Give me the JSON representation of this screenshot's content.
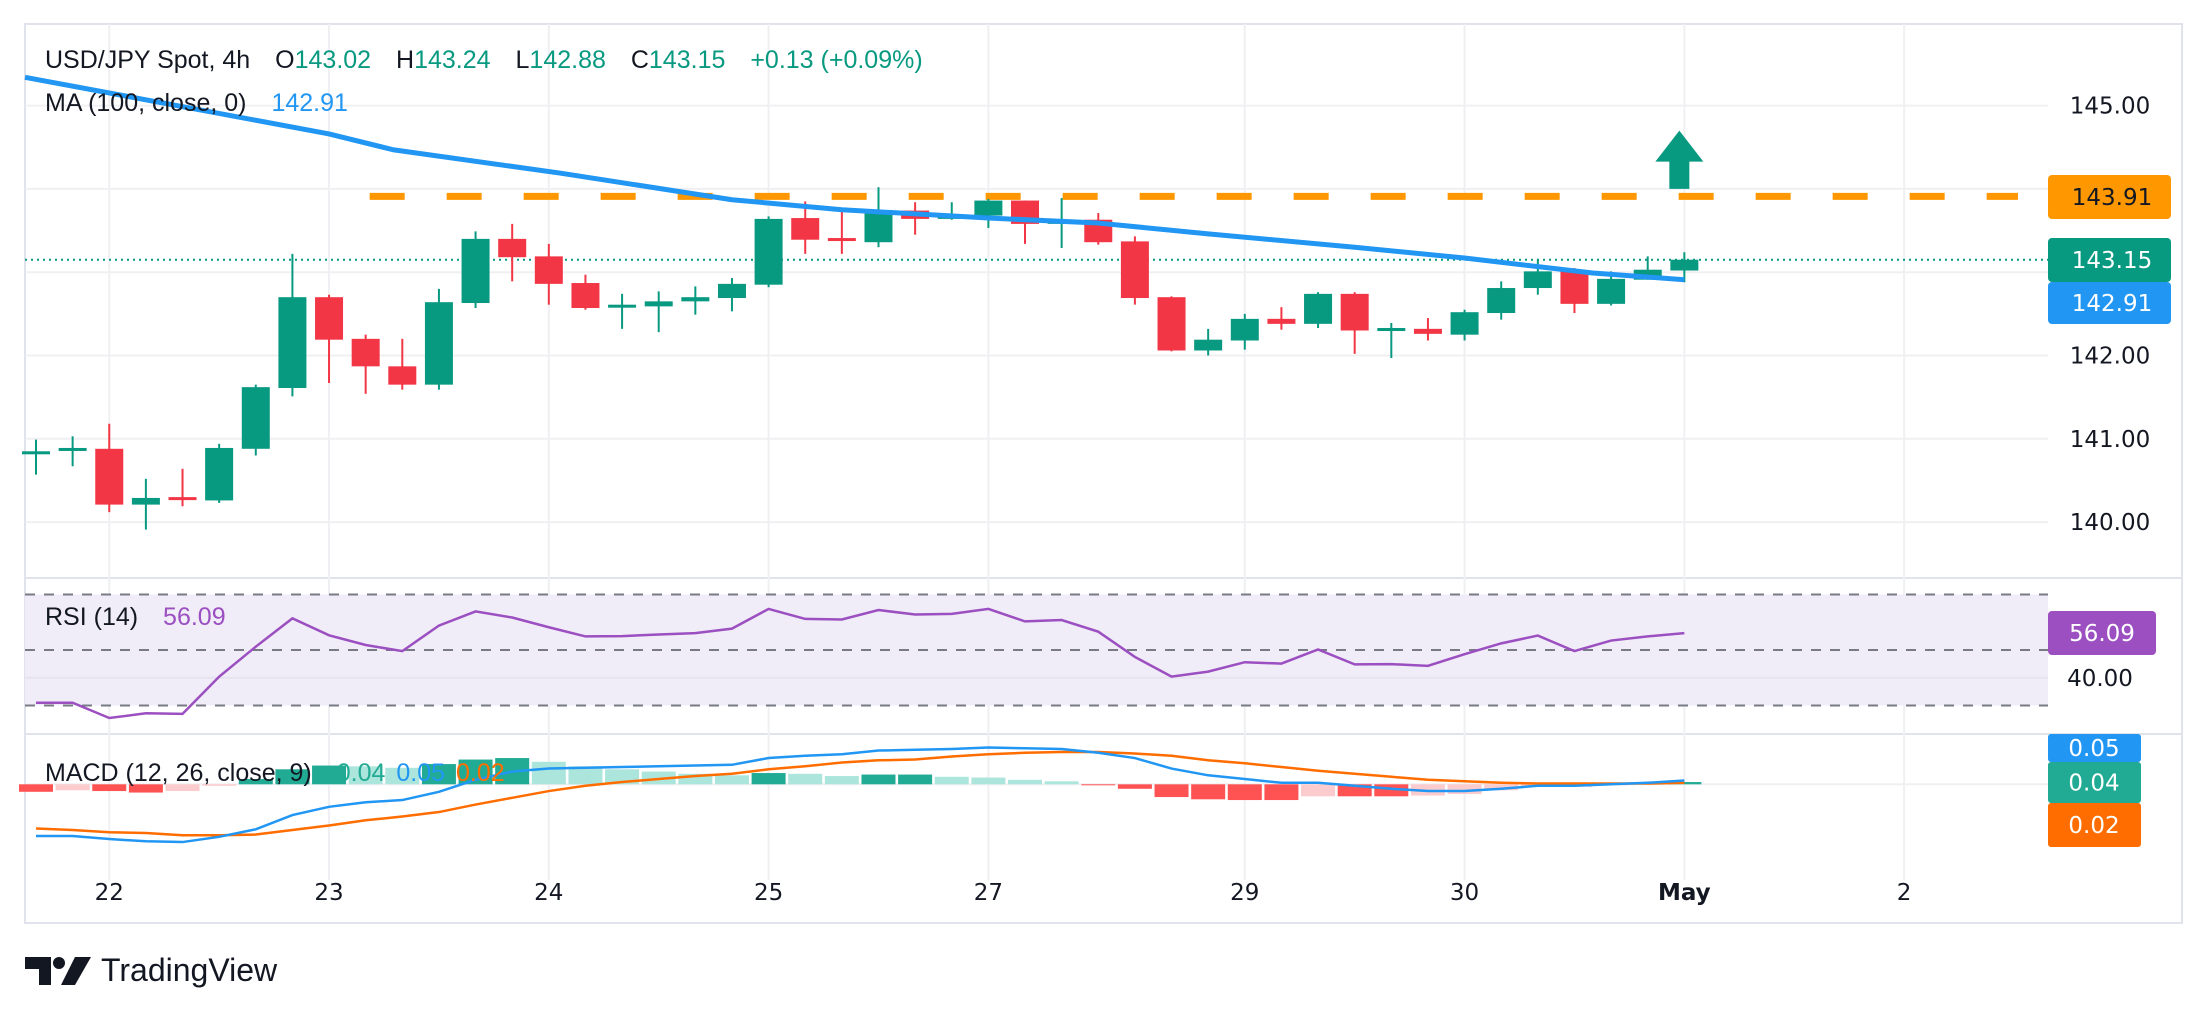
{
  "header": {
    "symbol": "USD/JPY Spot, 4h",
    "o_label": "O",
    "o": "143.02",
    "h_label": "H",
    "h": "143.24",
    "l_label": "L",
    "l": "142.88",
    "c_label": "C",
    "c": "143.15",
    "change": "+0.13 (+0.09%)"
  },
  "ma_legend": {
    "label": "MA (100, close, 0)",
    "value": "142.91"
  },
  "rsi_legend": {
    "label": "RSI (14)",
    "value": "56.09"
  },
  "macd_legend": {
    "label": "MACD (12, 26, close, 9)",
    "hist": "0.04",
    "macd": "0.05",
    "signal": "0.02"
  },
  "brand": {
    "name": "TradingView"
  },
  "colors": {
    "up": "#089981",
    "down": "#f23645",
    "ma": "#2196f3",
    "resistance": "#ff9800",
    "rsi": "#9b4fc0",
    "rsi_band": "#f0ecf8",
    "macd": "#2196f3",
    "signal": "#ff6d00",
    "hist_up_strong": "#22ab94",
    "hist_up_weak": "#ace5dc",
    "hist_down_strong": "#ff5252",
    "hist_down_weak": "#fccbcd"
  },
  "chart_data": {
    "type": "candlestick",
    "x_ticks": [
      {
        "label": "22",
        "index": 2
      },
      {
        "label": "23",
        "index": 8
      },
      {
        "label": "24",
        "index": 14
      },
      {
        "label": "25",
        "index": 20
      },
      {
        "label": "27",
        "index": 26
      },
      {
        "label": "29",
        "index": 33
      },
      {
        "label": "30",
        "index": 39
      },
      {
        "label": "May",
        "index": 45
      },
      {
        "label": "2",
        "index": 51
      }
    ],
    "price_ticks": [
      {
        "label": "145.00",
        "value": 145
      },
      {
        "label": "142.00",
        "value": 142
      },
      {
        "label": "141.00",
        "value": 141
      },
      {
        "label": "140.00",
        "value": 140
      }
    ],
    "price_gridlines": [
      145,
      144,
      143,
      142,
      141,
      140
    ],
    "candles": [
      [
        140.83,
        140.99,
        140.57,
        140.85
      ],
      [
        140.87,
        141.03,
        140.67,
        140.89
      ],
      [
        140.88,
        141.18,
        140.12,
        140.21
      ],
      [
        140.21,
        140.52,
        139.91,
        140.29
      ],
      [
        140.3,
        140.64,
        140.19,
        140.28
      ],
      [
        140.26,
        140.94,
        140.23,
        140.89
      ],
      [
        140.88,
        141.65,
        140.8,
        141.62
      ],
      [
        141.61,
        143.22,
        141.51,
        142.7
      ],
      [
        142.7,
        142.73,
        141.67,
        142.19
      ],
      [
        142.2,
        142.25,
        141.54,
        141.87
      ],
      [
        141.87,
        142.2,
        141.59,
        141.65
      ],
      [
        141.65,
        142.8,
        141.59,
        142.64
      ],
      [
        142.63,
        143.49,
        142.57,
        143.4
      ],
      [
        143.4,
        143.58,
        142.89,
        143.18
      ],
      [
        143.19,
        143.34,
        142.61,
        142.86
      ],
      [
        142.87,
        142.97,
        142.55,
        142.57
      ],
      [
        142.6,
        142.74,
        142.32,
        142.61
      ],
      [
        142.59,
        142.77,
        142.28,
        142.65
      ],
      [
        142.65,
        142.83,
        142.49,
        142.7
      ],
      [
        142.69,
        142.93,
        142.53,
        142.86
      ],
      [
        142.85,
        143.67,
        142.82,
        143.64
      ],
      [
        143.65,
        143.85,
        143.22,
        143.39
      ],
      [
        143.41,
        143.73,
        143.22,
        143.39
      ],
      [
        143.36,
        144.02,
        143.3,
        143.74
      ],
      [
        143.74,
        143.84,
        143.45,
        143.64
      ],
      [
        143.64,
        143.84,
        143.63,
        143.69
      ],
      [
        143.68,
        143.88,
        143.53,
        143.86
      ],
      [
        143.86,
        143.86,
        143.34,
        143.58
      ],
      [
        143.58,
        143.89,
        143.29,
        143.63
      ],
      [
        143.63,
        143.71,
        143.33,
        143.36
      ],
      [
        143.37,
        143.43,
        142.61,
        142.69
      ],
      [
        142.7,
        142.71,
        142.05,
        142.06
      ],
      [
        142.06,
        142.32,
        142.0,
        142.19
      ],
      [
        142.18,
        142.5,
        142.07,
        142.44
      ],
      [
        142.44,
        142.58,
        142.31,
        142.38
      ],
      [
        142.38,
        142.76,
        142.33,
        142.74
      ],
      [
        142.74,
        142.76,
        142.02,
        142.3
      ],
      [
        142.32,
        142.39,
        141.97,
        142.33
      ],
      [
        142.32,
        142.45,
        142.18,
        142.26
      ],
      [
        142.25,
        142.55,
        142.18,
        142.52
      ],
      [
        142.51,
        142.89,
        142.43,
        142.81
      ],
      [
        142.81,
        143.16,
        142.73,
        143.01
      ],
      [
        143.01,
        143.05,
        142.51,
        142.62
      ],
      [
        142.62,
        143.01,
        142.6,
        142.92
      ],
      [
        142.91,
        143.19,
        142.91,
        143.03
      ],
      [
        143.02,
        143.24,
        142.88,
        143.15
      ]
    ],
    "ma_100": [
      [
        -0.3,
        145.34
      ],
      [
        8,
        144.66
      ],
      [
        9.75,
        144.47
      ],
      [
        14.3,
        144.19
      ],
      [
        19,
        143.87
      ],
      [
        22,
        143.75
      ],
      [
        26,
        143.65
      ],
      [
        29,
        143.59
      ],
      [
        32,
        143.46
      ],
      [
        36,
        143.3
      ],
      [
        39,
        143.17
      ],
      [
        42.5,
        142.99
      ],
      [
        45,
        142.91
      ]
    ],
    "resistance": {
      "value": 143.91,
      "label": "143.91",
      "from_index": 9
    },
    "last_price": {
      "value": 143.15,
      "label": "143.15"
    },
    "ma_badge": {
      "value": 142.91,
      "label": "142.91"
    },
    "arrow": {
      "direction": "up",
      "index": 45,
      "from": 144.0,
      "to": 144.7
    },
    "rsi": {
      "label": "RSI (14)",
      "levels": [
        70,
        50,
        30
      ],
      "tick": {
        "label": "40.00",
        "value": 40
      },
      "badge": "56.09",
      "values": [
        31.0,
        31.0,
        25.5,
        27.2,
        27.0,
        40.4,
        51.2,
        61.4,
        55.3,
        51.8,
        49.6,
        58.8,
        63.9,
        61.7,
        58.2,
        54.9,
        55.0,
        55.6,
        56.1,
        57.7,
        64.8,
        61.2,
        61.0,
        64.4,
        62.8,
        63.0,
        64.8,
        60.3,
        60.8,
        56.6,
        47.5,
        40.4,
        42.2,
        45.6,
        45.1,
        50.2,
        44.8,
        44.9,
        44.3,
        48.5,
        52.4,
        55.2,
        49.6,
        53.4,
        54.9,
        56.09
      ]
    },
    "macd": {
      "label": "MACD (12, 26, close, 9)",
      "badges": {
        "macd": "0.05",
        "hist": "0.04",
        "signal": "0.02"
      },
      "macd": [
        -0.69,
        -0.69,
        -0.73,
        -0.76,
        -0.77,
        -0.7,
        -0.6,
        -0.41,
        -0.3,
        -0.24,
        -0.21,
        -0.1,
        0.06,
        0.17,
        0.21,
        0.22,
        0.23,
        0.24,
        0.25,
        0.26,
        0.35,
        0.38,
        0.4,
        0.45,
        0.46,
        0.47,
        0.49,
        0.48,
        0.47,
        0.42,
        0.35,
        0.21,
        0.12,
        0.07,
        0.02,
        0.02,
        -0.02,
        -0.06,
        -0.09,
        -0.09,
        -0.06,
        -0.02,
        -0.02,
        0.0,
        0.02,
        0.05
      ],
      "signal": [
        -0.59,
        -0.61,
        -0.64,
        -0.65,
        -0.68,
        -0.68,
        -0.67,
        -0.61,
        -0.55,
        -0.48,
        -0.43,
        -0.37,
        -0.27,
        -0.18,
        -0.09,
        -0.02,
        0.03,
        0.07,
        0.11,
        0.14,
        0.2,
        0.24,
        0.29,
        0.32,
        0.33,
        0.37,
        0.4,
        0.42,
        0.43,
        0.43,
        0.41,
        0.38,
        0.32,
        0.28,
        0.23,
        0.18,
        0.14,
        0.1,
        0.06,
        0.04,
        0.02,
        0.01,
        0.01,
        0.01,
        0.01,
        0.02
      ]
    }
  }
}
